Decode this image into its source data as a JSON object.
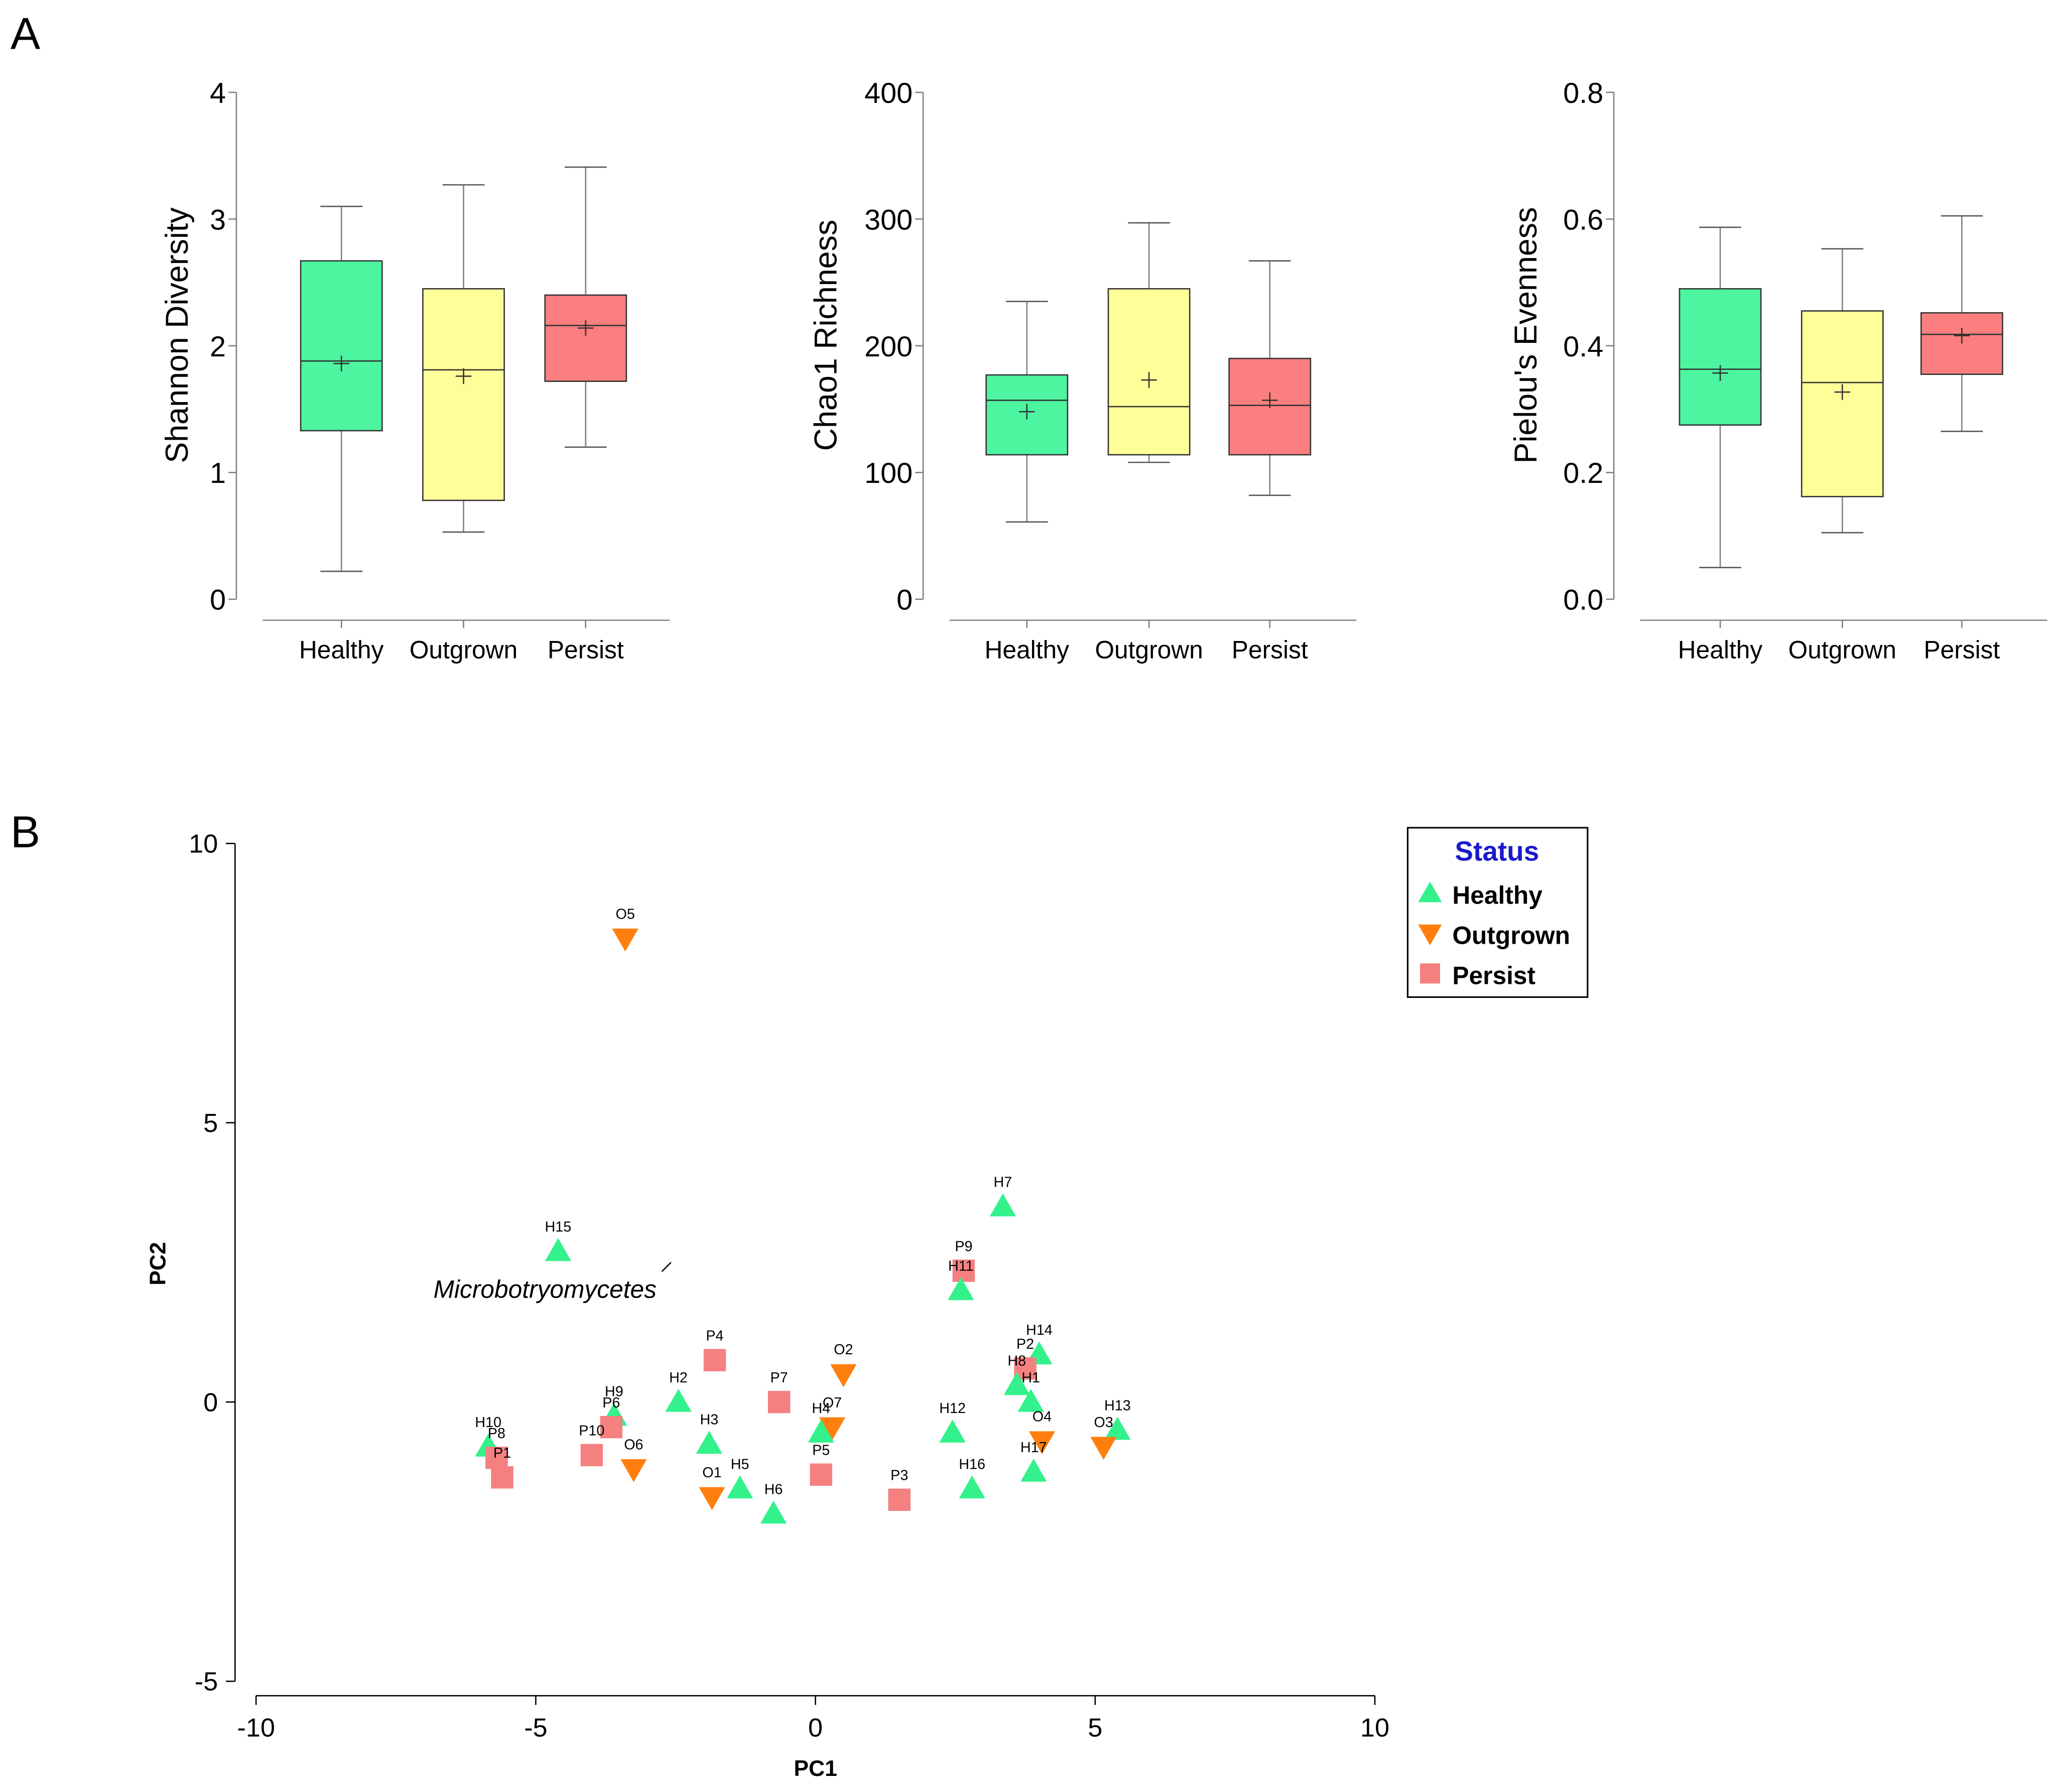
{
  "panels": {
    "a": "A",
    "b": "B"
  },
  "groups": [
    "Healthy",
    "Outgrown",
    "Persist"
  ],
  "colors": {
    "Healthy": "#33f28c",
    "Outgrown": "#ff7f0e",
    "Persist": "#f48080"
  },
  "box_colors": {
    "Healthy": "#4df5a0",
    "Outgrown": "#ffff99",
    "Persist": "#fc7f7f"
  },
  "chart_data": [
    {
      "type": "box",
      "ylabel": "Shannon Diversity",
      "categories": [
        "Healthy",
        "Outgrown",
        "Persist"
      ],
      "ylim": [
        0,
        4
      ],
      "yticks": [
        "0",
        "1",
        "2",
        "3",
        "4"
      ],
      "boxes": [
        {
          "whisker_low": 0.22,
          "q1": 1.33,
          "median": 1.88,
          "q3": 2.67,
          "whisker_high": 3.1,
          "mean": 1.86
        },
        {
          "whisker_low": 0.53,
          "q1": 0.78,
          "median": 1.81,
          "q3": 2.45,
          "whisker_high": 3.27,
          "mean": 1.76
        },
        {
          "whisker_low": 1.2,
          "q1": 1.72,
          "median": 2.16,
          "q3": 2.4,
          "whisker_high": 3.41,
          "mean": 2.14
        }
      ]
    },
    {
      "type": "box",
      "ylabel": "Chao1 Richness",
      "categories": [
        "Healthy",
        "Outgrown",
        "Persist"
      ],
      "ylim": [
        0,
        400
      ],
      "yticks": [
        "0",
        "100",
        "200",
        "300",
        "400"
      ],
      "boxes": [
        {
          "whisker_low": 61,
          "q1": 114,
          "median": 157,
          "q3": 177,
          "whisker_high": 235,
          "mean": 148
        },
        {
          "whisker_low": 108,
          "q1": 114,
          "median": 152,
          "q3": 245,
          "whisker_high": 297,
          "mean": 173
        },
        {
          "whisker_low": 82,
          "q1": 114,
          "median": 153,
          "q3": 190,
          "whisker_high": 267,
          "mean": 157
        }
      ]
    },
    {
      "type": "box",
      "ylabel": "Pielou's Evenness",
      "categories": [
        "Healthy",
        "Outgrown",
        "Persist"
      ],
      "ylim": [
        0,
        0.8
      ],
      "yticks": [
        "0.0",
        "0.2",
        "0.4",
        "0.6",
        "0.8"
      ],
      "boxes": [
        {
          "whisker_low": 0.05,
          "q1": 0.275,
          "median": 0.363,
          "q3": 0.49,
          "whisker_high": 0.587,
          "mean": 0.357
        },
        {
          "whisker_low": 0.105,
          "q1": 0.162,
          "median": 0.342,
          "q3": 0.455,
          "whisker_high": 0.553,
          "mean": 0.327
        },
        {
          "whisker_low": 0.265,
          "q1": 0.355,
          "median": 0.418,
          "q3": 0.452,
          "whisker_high": 0.605,
          "mean": 0.416
        }
      ]
    },
    {
      "type": "scatter",
      "xlabel": "PC1",
      "ylabel": "PC2",
      "xlim": [
        -10,
        10
      ],
      "ylim": [
        -5,
        10
      ],
      "xticks": [
        "-10",
        "-5",
        "0",
        "5",
        "10"
      ],
      "yticks": [
        "-5",
        "0",
        "5",
        "10"
      ],
      "annotation": "Microbotryomycetes",
      "legend_title": "Status",
      "legend_entries": [
        "Healthy",
        "Outgrown",
        "Persist"
      ],
      "points": [
        {
          "label": "O5",
          "group": "Outgrown",
          "x": -3.4,
          "y": 8.3
        },
        {
          "label": "H15",
          "group": "Healthy",
          "x": -4.6,
          "y": 2.7
        },
        {
          "label": "H7",
          "group": "Healthy",
          "x": 3.35,
          "y": 3.5
        },
        {
          "label": "P9",
          "group": "Persist",
          "x": 2.65,
          "y": 2.35
        },
        {
          "label": "H11",
          "group": "Healthy",
          "x": 2.6,
          "y": 2.0
        },
        {
          "label": "P4",
          "group": "Persist",
          "x": -1.8,
          "y": 0.75
        },
        {
          "label": "O2",
          "group": "Outgrown",
          "x": 0.5,
          "y": 0.5
        },
        {
          "label": "H14",
          "group": "Healthy",
          "x": 4.0,
          "y": 0.85
        },
        {
          "label": "P2",
          "group": "Persist",
          "x": 3.75,
          "y": 0.6
        },
        {
          "label": "H8",
          "group": "Healthy",
          "x": 3.6,
          "y": 0.3
        },
        {
          "label": "H1",
          "group": "Healthy",
          "x": 3.85,
          "y": 0.0
        },
        {
          "label": "P7",
          "group": "Persist",
          "x": -0.65,
          "y": 0.0
        },
        {
          "label": "H2",
          "group": "Healthy",
          "x": -2.45,
          "y": 0.0
        },
        {
          "label": "H9",
          "group": "Healthy",
          "x": -3.6,
          "y": -0.25
        },
        {
          "label": "P6",
          "group": "Persist",
          "x": -3.65,
          "y": -0.45
        },
        {
          "label": "O7",
          "group": "Outgrown",
          "x": 0.3,
          "y": -0.45
        },
        {
          "label": "H4",
          "group": "Healthy",
          "x": 0.1,
          "y": -0.55
        },
        {
          "label": "H12",
          "group": "Healthy",
          "x": 2.45,
          "y": -0.55
        },
        {
          "label": "H13",
          "group": "Healthy",
          "x": 5.4,
          "y": -0.5
        },
        {
          "label": "O3",
          "group": "Outgrown",
          "x": 5.15,
          "y": -0.8
        },
        {
          "label": "O4",
          "group": "Outgrown",
          "x": 4.05,
          "y": -0.7
        },
        {
          "label": "H10",
          "group": "Healthy",
          "x": -5.85,
          "y": -0.8
        },
        {
          "label": "P8",
          "group": "Persist",
          "x": -5.7,
          "y": -1.0
        },
        {
          "label": "P1",
          "group": "Persist",
          "x": -5.6,
          "y": -1.35
        },
        {
          "label": "P10",
          "group": "Persist",
          "x": -4.0,
          "y": -0.95
        },
        {
          "label": "O6",
          "group": "Outgrown",
          "x": -3.25,
          "y": -1.2
        },
        {
          "label": "H3",
          "group": "Healthy",
          "x": -1.9,
          "y": -0.75
        },
        {
          "label": "O1",
          "group": "Outgrown",
          "x": -1.85,
          "y": -1.7
        },
        {
          "label": "H5",
          "group": "Healthy",
          "x": -1.35,
          "y": -1.55
        },
        {
          "label": "H6",
          "group": "Healthy",
          "x": -0.75,
          "y": -2.0
        },
        {
          "label": "P5",
          "group": "Persist",
          "x": 0.1,
          "y": -1.3
        },
        {
          "label": "P3",
          "group": "Persist",
          "x": 1.5,
          "y": -1.75
        },
        {
          "label": "H16",
          "group": "Healthy",
          "x": 2.8,
          "y": -1.55
        },
        {
          "label": "H17",
          "group": "Healthy",
          "x": 3.9,
          "y": -1.25
        }
      ]
    }
  ]
}
